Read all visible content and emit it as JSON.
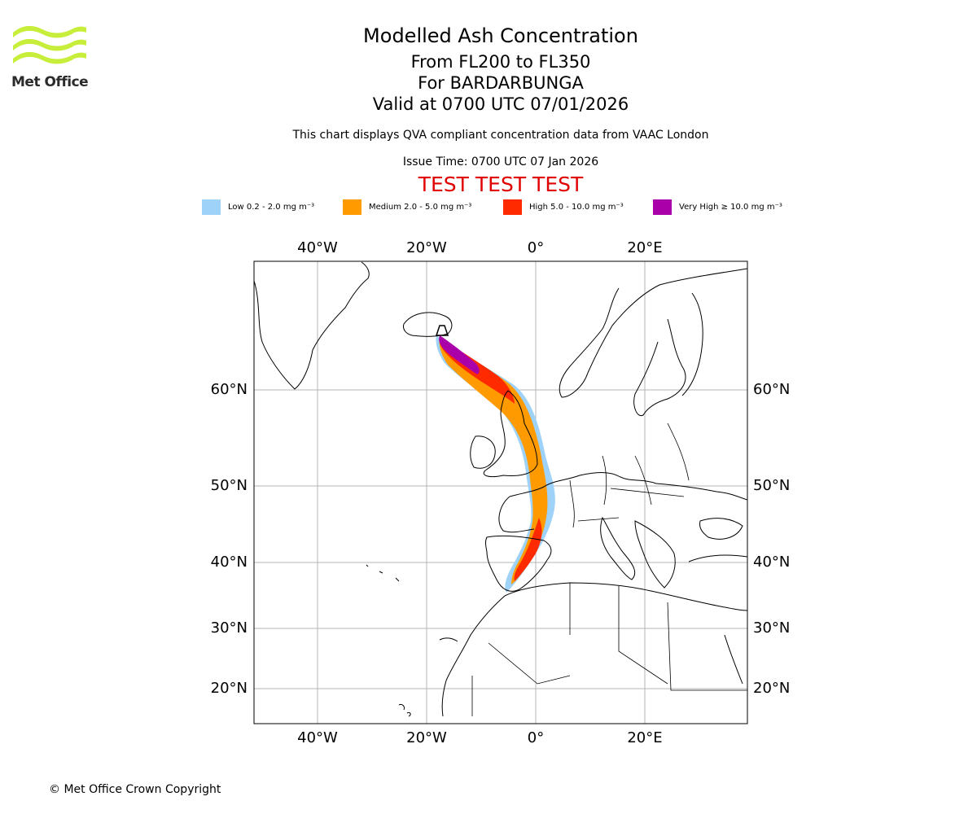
{
  "branding": {
    "logo_text": "Met Office",
    "colors": {
      "logo_green": "#c8ee3c",
      "logo_text": "#2b2b2b"
    }
  },
  "header": {
    "title": "Modelled Ash Concentration",
    "level_range": "From FL200 to FL350",
    "volcano": "For BARDARBUNGA",
    "valid_time": "Valid at 0700 UTC 07/01/2026",
    "description": "This chart displays QVA compliant concentration data from VAAC London",
    "issue_time": "Issue Time: 0700 UTC 07 Jan 2026",
    "test_banner": "TEST TEST TEST",
    "test_color": "#e00000"
  },
  "legend": [
    {
      "label": "Low 0.2 - 2.0 mg m⁻³",
      "color": "#9ed2f8"
    },
    {
      "label": "Medium 2.0 - 5.0 mg m⁻³",
      "color": "#ff9a00"
    },
    {
      "label": "High 5.0 - 10.0 mg m⁻³",
      "color": "#ff2a00"
    },
    {
      "label": "Very High  ≥  10.0 mg m⁻³",
      "color": "#aa00aa"
    }
  ],
  "map": {
    "longitude_labels": [
      "40°W",
      "20°W",
      "0°",
      "20°E"
    ],
    "latitude_labels": [
      "60°N",
      "50°N",
      "40°N",
      "30°N",
      "20°N"
    ],
    "source_volcano": "Bardarbunga",
    "grid_color": "#b4b4b4",
    "coast_color": "#000000"
  },
  "footer": {
    "copyright": "© Met Office Crown Copyright"
  }
}
